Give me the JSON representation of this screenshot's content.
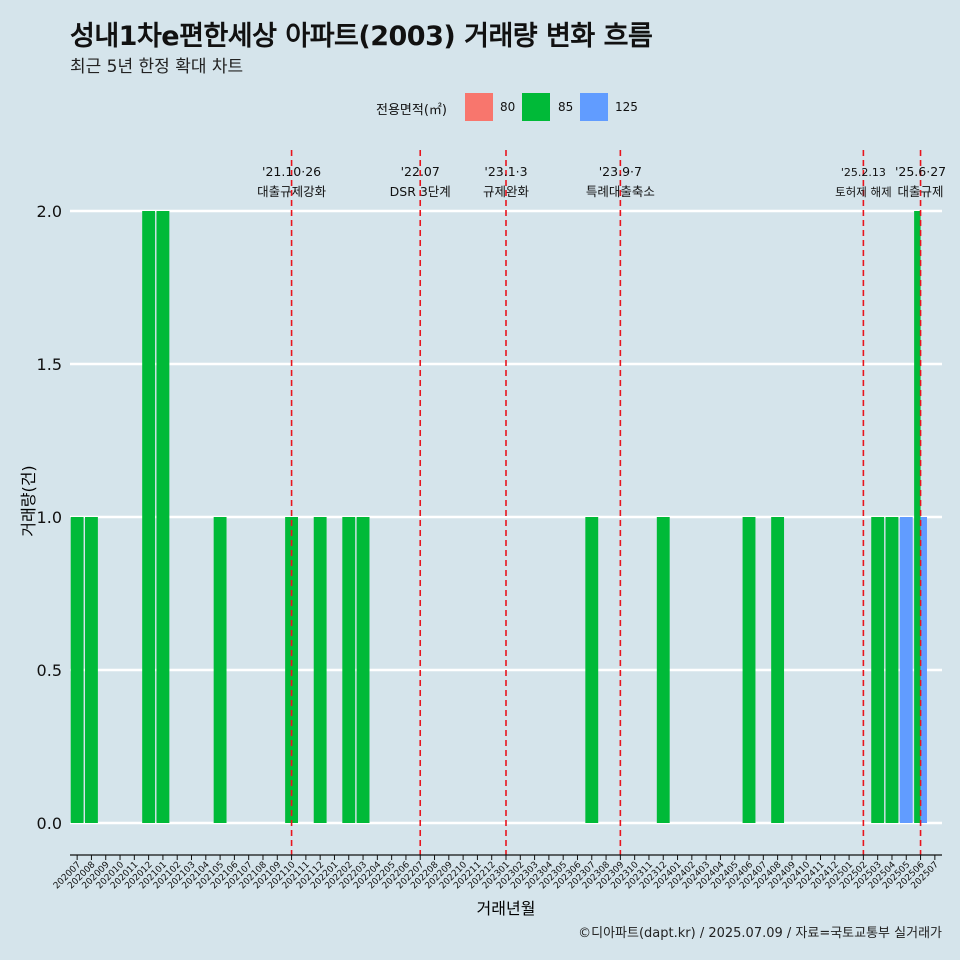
{
  "title": "성내1차e편한세상 아파트(2003) 거래량 변화 흐름",
  "subtitle": "최근 5년 한정 확대 차트",
  "caption": "©디아파트(dapt.kr) / 2025.07.09 / 자료=국토교통부 실거래가",
  "legend": {
    "title": "전용면적(㎡)",
    "items": [
      {
        "label": "80",
        "color": "#f8766d"
      },
      {
        "label": "85",
        "color": "#00ba38"
      },
      {
        "label": "125",
        "color": "#619cff"
      }
    ]
  },
  "chart_data": {
    "type": "bar",
    "title": "성내1차e편한세상 아파트(2003) 거래량 변화 흐름",
    "xlabel": "거래년월",
    "ylabel": "거래량(건)",
    "ylim": [
      0,
      2.0
    ],
    "yticks": [
      "0.0",
      "0.5",
      "1.0",
      "1.5",
      "2.0"
    ],
    "categories": [
      "202007",
      "202008",
      "202009",
      "202010",
      "202011",
      "202012",
      "202101",
      "202102",
      "202103",
      "202104",
      "202105",
      "202106",
      "202107",
      "202108",
      "202109",
      "202110",
      "202111",
      "202112",
      "202201",
      "202202",
      "202203",
      "202204",
      "202205",
      "202206",
      "202207",
      "202208",
      "202209",
      "202210",
      "202211",
      "202212",
      "202301",
      "202302",
      "202303",
      "202304",
      "202305",
      "202306",
      "202307",
      "202308",
      "202309",
      "202310",
      "202311",
      "202312",
      "202401",
      "202402",
      "202403",
      "202404",
      "202405",
      "202406",
      "202407",
      "202408",
      "202409",
      "202410",
      "202411",
      "202412",
      "202501",
      "202502",
      "202503",
      "202504",
      "202505",
      "202506",
      "202507"
    ],
    "bars": [
      {
        "category": "202007",
        "series": "85",
        "value": 1
      },
      {
        "category": "202008",
        "series": "85",
        "value": 1
      },
      {
        "category": "202012",
        "series": "85",
        "value": 2
      },
      {
        "category": "202101",
        "series": "85",
        "value": 2
      },
      {
        "category": "202105",
        "series": "85",
        "value": 1
      },
      {
        "category": "202110",
        "series": "85",
        "value": 1
      },
      {
        "category": "202112",
        "series": "85",
        "value": 1
      },
      {
        "category": "202202",
        "series": "85",
        "value": 1
      },
      {
        "category": "202203",
        "series": "85",
        "value": 1
      },
      {
        "category": "202307",
        "series": "85",
        "value": 1
      },
      {
        "category": "202312",
        "series": "85",
        "value": 1
      },
      {
        "category": "202406",
        "series": "85",
        "value": 1
      },
      {
        "category": "202408",
        "series": "85",
        "value": 1
      },
      {
        "category": "202503",
        "series": "85",
        "value": 1
      },
      {
        "category": "202504",
        "series": "85",
        "value": 1
      },
      {
        "category": "202505",
        "series": "125",
        "value": 1
      },
      {
        "category": "202506",
        "series": "85",
        "value": 2,
        "offset": "left"
      },
      {
        "category": "202506",
        "series": "125",
        "value": 1,
        "offset": "right"
      }
    ],
    "events": [
      {
        "position": "202110",
        "date": "'21.10·26",
        "label": "대출규제강화"
      },
      {
        "position": "202207",
        "date": "'22.07",
        "label": "DSR 3단계"
      },
      {
        "position": "202301",
        "date": "'23.1·3",
        "label": "규제완화"
      },
      {
        "position": "202309",
        "date": "'23.9·7",
        "label": "특례대출축소"
      },
      {
        "position": "202502",
        "date": "'25.2.13",
        "label": "토허제 해제"
      },
      {
        "position": "202506",
        "date": "'25.6·27",
        "label": "대출규제"
      }
    ]
  }
}
